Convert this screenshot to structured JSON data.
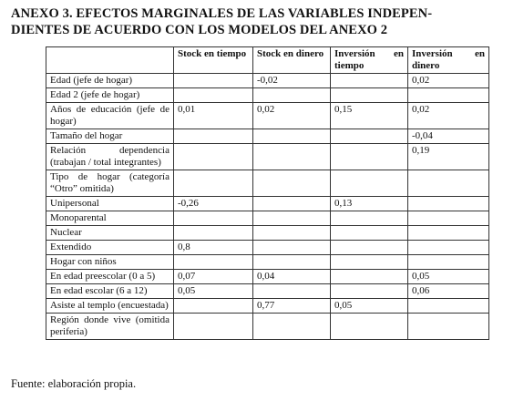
{
  "header": {
    "title_lines": [
      "ANEXO 3.  EFECTOS MARGINALES DE LAS VARIABLES INDEPEN-",
      "DIENTES DE ACUERDO CON LOS MODELOS DEL ANEXO 2"
    ]
  },
  "table": {
    "columns": [
      "Stock en tiempo",
      "Stock en dinero",
      "Inversión en tiempo",
      "Inversión en dinero"
    ],
    "rows": [
      {
        "label": "Edad (jefe de hogar)",
        "values": [
          null,
          "-0,02",
          null,
          "0,02"
        ]
      },
      {
        "label": "Edad 2 (jefe de hogar)",
        "values": [
          null,
          null,
          null,
          null
        ]
      },
      {
        "label": "Años de educación (jefe de hogar)",
        "values": [
          "0,01",
          "0,02",
          "0,15",
          "0,02"
        ]
      },
      {
        "label": "Tamaño del hogar",
        "values": [
          null,
          null,
          null,
          "-0,04"
        ]
      },
      {
        "label": "Relación dependencia (trabajan / total integrantes)",
        "values": [
          null,
          null,
          null,
          "0,19"
        ]
      },
      {
        "label": "Tipo de hogar (categoría “Otro” omitida)",
        "values": [
          null,
          null,
          null,
          null
        ]
      },
      {
        "label": "Unipersonal",
        "values": [
          "-0,26",
          null,
          "0,13",
          null
        ]
      },
      {
        "label": "Monoparental",
        "values": [
          null,
          null,
          null,
          null
        ]
      },
      {
        "label": "Nuclear",
        "values": [
          null,
          null,
          null,
          null
        ]
      },
      {
        "label": "Extendido",
        "values": [
          "0,8",
          null,
          null,
          null
        ]
      },
      {
        "label": "Hogar con niños",
        "values": [
          null,
          null,
          null,
          null
        ]
      },
      {
        "label": "En edad preescolar (0 a 5)",
        "values": [
          "0,07",
          "0,04",
          null,
          "0,05"
        ]
      },
      {
        "label": "En edad escolar (6 a 12)",
        "values": [
          "0,05",
          null,
          null,
          "0,06"
        ]
      },
      {
        "label": "Asiste al templo (encuestada)",
        "values": [
          null,
          "0,77",
          "0,05",
          null
        ]
      },
      {
        "label": "Región donde vive (omitida periferia)",
        "values": [
          null,
          null,
          null,
          null
        ]
      }
    ]
  },
  "footer": {
    "source": "Fuente: elaboración propia."
  }
}
